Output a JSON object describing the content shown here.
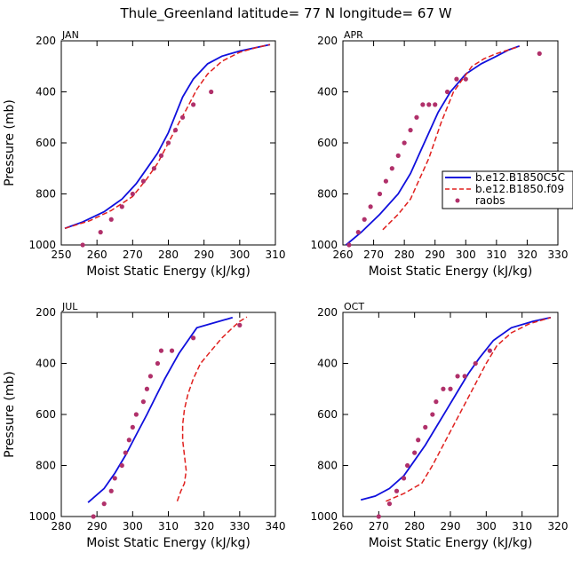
{
  "figure": {
    "title": "Thule_Greenland   latitude= 77 N longitude= 67 W"
  },
  "legend": {
    "entries": [
      {
        "label": "b.e12.B1850C5C",
        "color": "#1010dd",
        "style": "solid"
      },
      {
        "label": "b.e12.B1850.f09",
        "color": "#e0201e",
        "style": "dashed"
      },
      {
        "label": "raobs",
        "color": "#b0306a",
        "style": "dots"
      }
    ]
  },
  "chart_data": [
    {
      "type": "line",
      "panel_label": "JAN",
      "xlabel": "Moist Static Energy (kJ/kg)",
      "ylabel": "Pressure (mb)",
      "xlim": [
        250,
        310
      ],
      "ylim": [
        1000,
        200
      ],
      "y_inverted": true,
      "xticks": [
        250,
        260,
        270,
        280,
        290,
        300,
        310
      ],
      "yticks": [
        200,
        400,
        600,
        800,
        1000
      ],
      "series": [
        {
          "name": "b.e12.B1850C5C",
          "x": [
            251,
            256,
            262,
            267,
            271,
            274,
            277,
            280,
            282,
            284,
            287,
            291,
            295,
            300,
            305,
            308.5
          ],
          "y": [
            935,
            910,
            870,
            820,
            760,
            700,
            640,
            560,
            490,
            420,
            350,
            290,
            260,
            240,
            225,
            215
          ]
        },
        {
          "name": "b.e12.B1850.f09",
          "x": [
            251,
            258,
            264,
            270,
            274,
            277,
            280,
            283,
            285,
            288,
            291,
            295,
            300,
            305,
            308.5
          ],
          "y": [
            935,
            905,
            865,
            810,
            740,
            680,
            600,
            520,
            470,
            390,
            330,
            280,
            245,
            225,
            215
          ]
        },
        {
          "name": "raobs",
          "x": [
            256,
            261,
            264,
            267,
            270,
            273,
            276,
            278,
            280,
            282,
            284,
            287,
            292
          ],
          "y": [
            1000,
            950,
            900,
            850,
            800,
            750,
            700,
            650,
            600,
            550,
            500,
            450,
            400
          ]
        }
      ]
    },
    {
      "type": "line",
      "panel_label": "APR",
      "xlabel": "Moist Static Energy (kJ/kg)",
      "ylabel": "",
      "xlim": [
        260,
        330
      ],
      "ylim": [
        1000,
        200
      ],
      "y_inverted": true,
      "xticks": [
        260,
        270,
        280,
        290,
        300,
        310,
        320,
        330
      ],
      "yticks": [
        200,
        400,
        600,
        800,
        1000
      ],
      "series": [
        {
          "name": "b.e12.B1850C5C",
          "x": [
            261,
            266,
            272,
            278,
            282,
            285,
            288,
            291,
            295,
            300,
            305,
            310,
            314,
            317.5
          ],
          "y": [
            1000,
            950,
            880,
            800,
            720,
            640,
            560,
            480,
            400,
            330,
            290,
            260,
            235,
            220
          ]
        },
        {
          "name": "b.e12.B1850.f09",
          "x": [
            273,
            278,
            282,
            285,
            288,
            290,
            292,
            294,
            296,
            299,
            302,
            306,
            310,
            314,
            317.5
          ],
          "y": [
            940,
            880,
            820,
            740,
            660,
            590,
            520,
            460,
            400,
            350,
            300,
            270,
            250,
            235,
            222
          ]
        },
        {
          "name": "raobs",
          "x": [
            262,
            265,
            267,
            269,
            272,
            274,
            276,
            278,
            280,
            282,
            284,
            286,
            288,
            290,
            294,
            297,
            300,
            324
          ],
          "y": [
            1000,
            950,
            900,
            850,
            800,
            750,
            700,
            650,
            600,
            550,
            500,
            450,
            450,
            450,
            400,
            350,
            350,
            250
          ]
        }
      ]
    },
    {
      "type": "line",
      "panel_label": "JUL",
      "xlabel": "Moist Static Energy (kJ/kg)",
      "ylabel": "Pressure (mb)",
      "xlim": [
        280,
        340
      ],
      "ylim": [
        1000,
        200
      ],
      "y_inverted": true,
      "xticks": [
        280,
        290,
        300,
        310,
        320,
        330,
        340
      ],
      "yticks": [
        200,
        400,
        600,
        800,
        1000
      ],
      "series": [
        {
          "name": "b.e12.B1850C5C",
          "x": [
            287.5,
            292,
            295,
            298,
            301,
            304,
            306.5,
            309,
            311,
            313,
            315,
            318,
            323,
            328
          ],
          "y": [
            945,
            890,
            830,
            760,
            680,
            600,
            530,
            460,
            410,
            360,
            320,
            260,
            240,
            220
          ]
        },
        {
          "name": "b.e12.B1850.f09",
          "x": [
            312.5,
            313.5,
            314.5,
            315,
            314.5,
            314,
            314,
            314.5,
            315.5,
            317,
            319,
            322,
            325,
            328,
            330,
            332
          ],
          "y": [
            940,
            900,
            870,
            820,
            760,
            700,
            640,
            580,
            520,
            460,
            400,
            350,
            300,
            260,
            235,
            218
          ]
        },
        {
          "name": "raobs",
          "x": [
            289,
            292,
            294,
            295,
            297,
            298,
            299,
            300,
            301,
            303,
            304,
            305,
            307,
            308,
            311,
            317,
            330
          ],
          "y": [
            1000,
            950,
            900,
            850,
            800,
            750,
            700,
            650,
            600,
            550,
            500,
            450,
            400,
            350,
            350,
            300,
            250
          ]
        }
      ]
    },
    {
      "type": "line",
      "panel_label": "OCT",
      "xlabel": "Moist Static Energy (kJ/kg)",
      "ylabel": "",
      "xlim": [
        260,
        320
      ],
      "ylim": [
        1000,
        200
      ],
      "y_inverted": true,
      "xticks": [
        260,
        270,
        280,
        290,
        300,
        310,
        320
      ],
      "yticks": [
        200,
        400,
        600,
        800,
        1000
      ],
      "series": [
        {
          "name": "b.e12.B1850C5C",
          "x": [
            265,
            269,
            273,
            277,
            280,
            283,
            286,
            289,
            292,
            295,
            298,
            302,
            307,
            313,
            318
          ],
          "y": [
            935,
            920,
            890,
            840,
            780,
            720,
            650,
            580,
            510,
            440,
            380,
            310,
            260,
            235,
            220
          ]
        },
        {
          "name": "b.e12.B1850.f09",
          "x": [
            272,
            277,
            282,
            285,
            288,
            291,
            294,
            297,
            300,
            303,
            307,
            312,
            318
          ],
          "y": [
            940,
            910,
            870,
            800,
            720,
            640,
            560,
            480,
            400,
            330,
            280,
            245,
            220
          ]
        },
        {
          "name": "raobs",
          "x": [
            270,
            273,
            275,
            277,
            278,
            280,
            281,
            283,
            285,
            286,
            288,
            290,
            292,
            294,
            297,
            301
          ],
          "y": [
            1000,
            950,
            900,
            850,
            800,
            750,
            700,
            650,
            600,
            550,
            500,
            500,
            450,
            450,
            400,
            350
          ]
        }
      ]
    }
  ]
}
